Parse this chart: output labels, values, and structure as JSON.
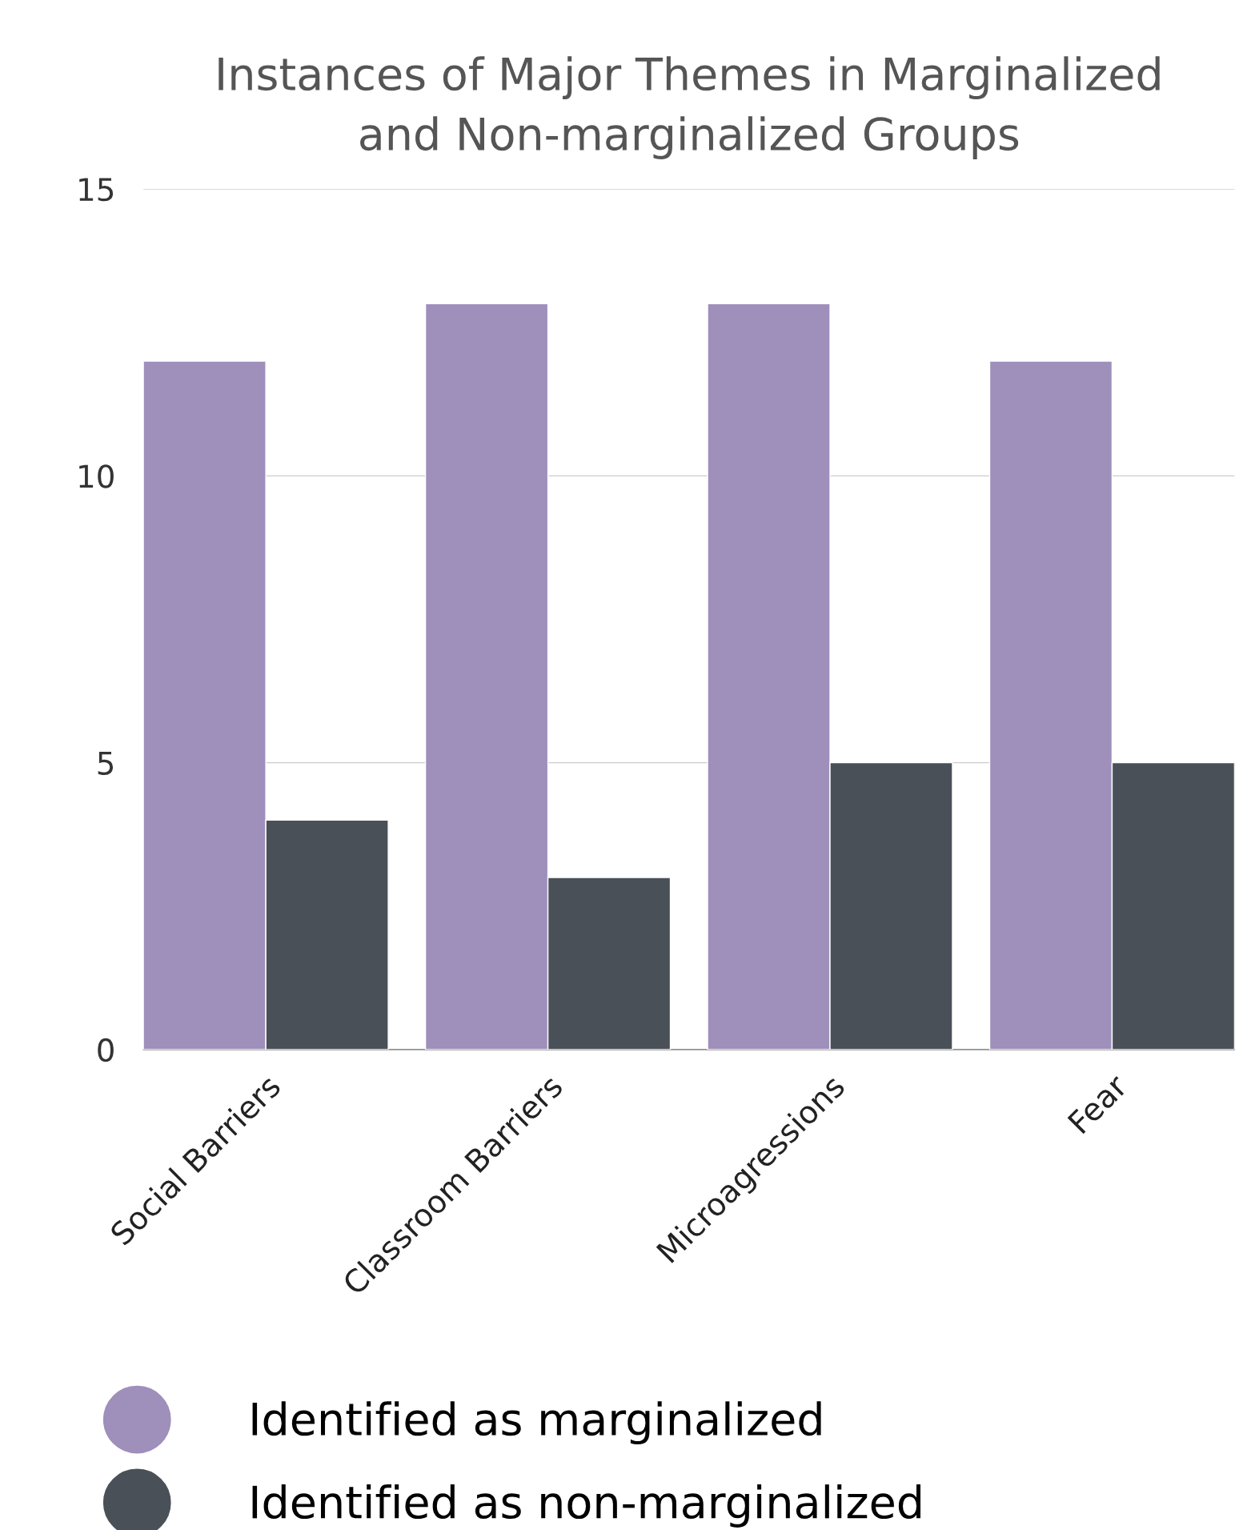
{
  "chart_data": {
    "type": "bar",
    "title": "Instances of Major Themes in Marginalized\nand Non-marginalized Groups",
    "categories": [
      "Social Barriers",
      "Classroom Barriers",
      "Microagressions",
      "Fear"
    ],
    "series": [
      {
        "name": "Identified as marginalized",
        "color": "#9f8fbb",
        "values": [
          12,
          13,
          13,
          12
        ]
      },
      {
        "name": "Identified as non-marginalized",
        "color": "#4a5058",
        "values": [
          4,
          3,
          5,
          5
        ]
      }
    ],
    "ylim": [
      0,
      15
    ],
    "yticks": [
      0,
      5,
      10,
      15
    ],
    "grid": "y",
    "legend": "bottom left"
  }
}
